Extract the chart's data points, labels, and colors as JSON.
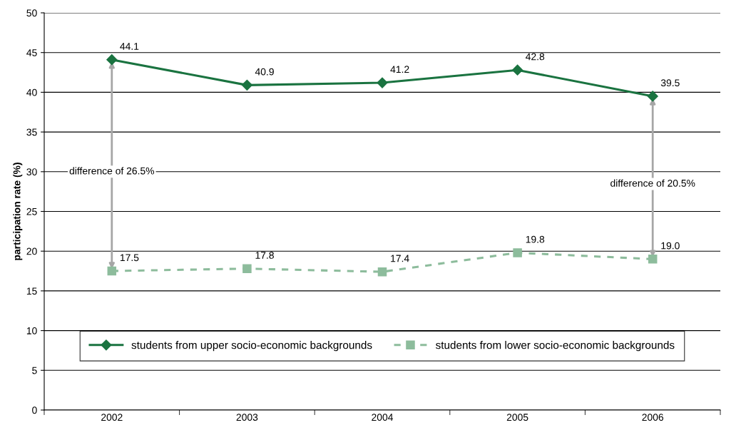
{
  "chart_data": {
    "type": "line",
    "ylabel": "participation rate (%)",
    "categories": [
      "2002",
      "2003",
      "2004",
      "2005",
      "2006"
    ],
    "series": [
      {
        "name": "students from upper socio-economic backgrounds",
        "color": "#1a7340",
        "marker": "diamond",
        "line_style": "solid",
        "values": [
          44.1,
          40.9,
          41.2,
          42.8,
          39.5
        ],
        "value_labels": [
          "44.1",
          "40.9",
          "41.2",
          "42.8",
          "39.5"
        ]
      },
      {
        "name": "students from lower socio-economic backgrounds",
        "color": "#8dbc9c",
        "marker": "square",
        "line_style": "dashed",
        "values": [
          17.5,
          17.8,
          17.4,
          19.8,
          19.0
        ],
        "value_labels": [
          "17.5",
          "17.8",
          "17.4",
          "19.8",
          "19.0"
        ]
      }
    ],
    "ylim": [
      0,
      50
    ],
    "yticks": [
      0,
      5,
      10,
      15,
      20,
      25,
      30,
      35,
      40,
      45,
      50
    ],
    "grid": "y",
    "legend": "bottom",
    "annotations": [
      "difference of 26.5%",
      "difference of 20.5%"
    ]
  }
}
